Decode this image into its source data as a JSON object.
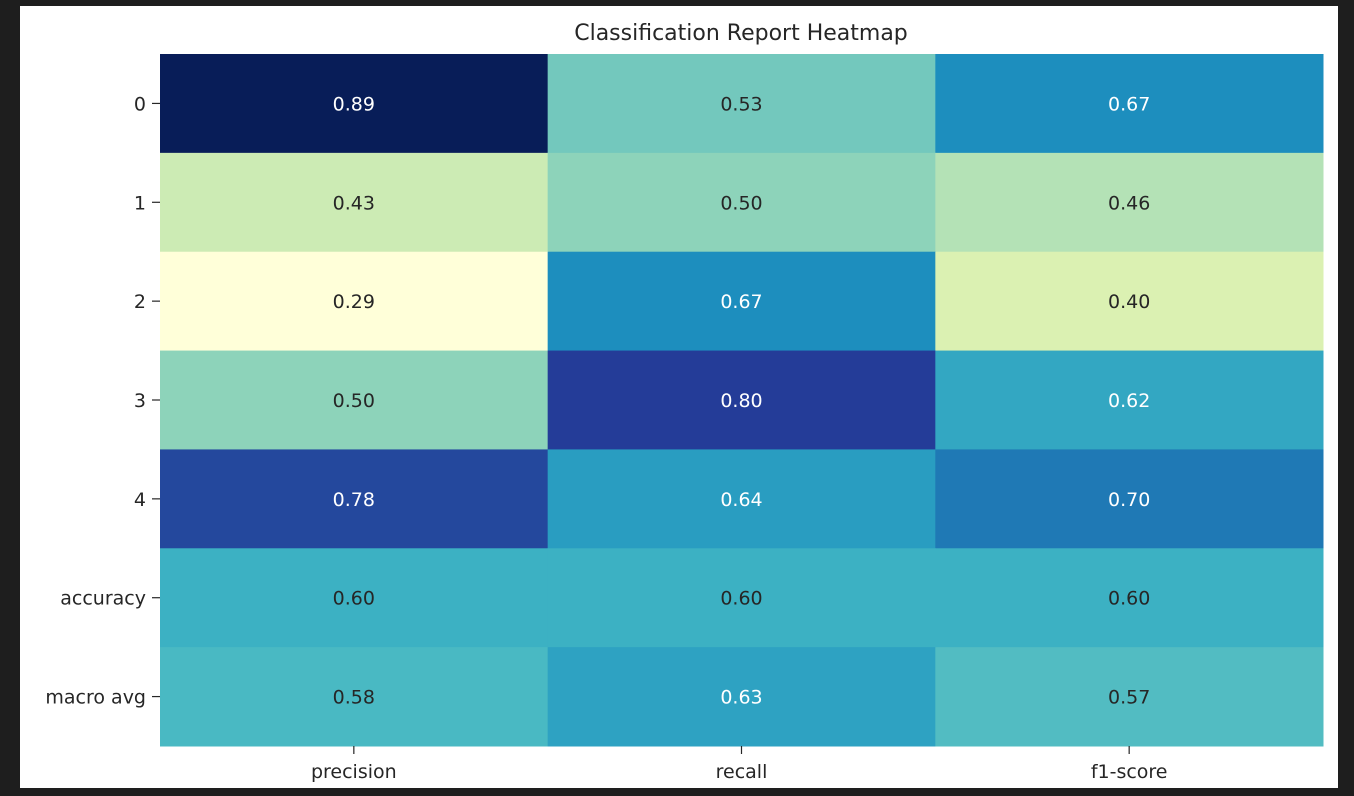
{
  "chart_data": {
    "type": "heatmap",
    "title": "Classification Report Heatmap",
    "xlabel": "",
    "ylabel": "",
    "columns": [
      "precision",
      "recall",
      "f1-score"
    ],
    "rows": [
      "0",
      "1",
      "2",
      "3",
      "4",
      "accuracy",
      "macro avg"
    ],
    "values": [
      [
        0.89,
        0.53,
        0.67
      ],
      [
        0.43,
        0.5,
        0.46
      ],
      [
        0.29,
        0.67,
        0.4
      ],
      [
        0.5,
        0.8,
        0.62
      ],
      [
        0.78,
        0.64,
        0.7
      ],
      [
        0.6,
        0.6,
        0.6
      ],
      [
        0.58,
        0.63,
        0.57
      ]
    ],
    "value_format": "0.00",
    "colormap": "YlGnBu",
    "colorbar": false
  },
  "theme": {
    "page_background": "#1e1e1e",
    "figure_background": "#ffffff",
    "text_color": "#262626",
    "light_label_color": "#ffffff",
    "dark_label_color": "#262626"
  }
}
